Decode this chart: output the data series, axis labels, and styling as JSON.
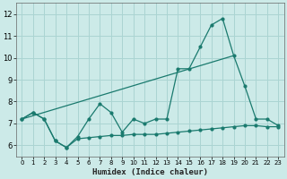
{
  "xlabel": "Humidex (Indice chaleur)",
  "background_color": "#cceae8",
  "grid_color": "#aad4d2",
  "line_color": "#1a7a6e",
  "xlim": [
    -0.5,
    23.5
  ],
  "ylim": [
    5.5,
    12.5
  ],
  "yticks": [
    6,
    7,
    8,
    9,
    10,
    11,
    12
  ],
  "xticks": [
    0,
    1,
    2,
    3,
    4,
    5,
    6,
    7,
    8,
    9,
    10,
    11,
    12,
    13,
    14,
    15,
    16,
    17,
    18,
    19,
    20,
    21,
    22,
    23
  ],
  "series1_x": [
    0,
    1,
    2,
    3,
    4,
    5,
    6,
    7,
    8,
    9,
    10,
    11,
    12,
    13,
    14,
    15,
    16,
    17,
    18,
    19,
    20,
    21,
    22,
    23
  ],
  "series1_y": [
    7.2,
    7.5,
    7.2,
    6.2,
    5.9,
    6.4,
    7.2,
    7.9,
    7.5,
    6.6,
    7.2,
    7.0,
    7.2,
    7.2,
    9.5,
    9.5,
    10.5,
    11.5,
    11.8,
    10.1,
    8.7,
    7.2,
    7.2,
    6.9
  ],
  "series2_x": [
    0,
    1,
    2,
    3,
    4,
    5,
    6,
    7,
    8,
    9,
    10,
    11,
    12,
    13,
    14,
    15,
    16,
    17,
    18,
    19,
    20,
    21,
    22,
    23
  ],
  "series2_y": [
    7.2,
    7.5,
    7.2,
    6.2,
    5.9,
    6.3,
    6.35,
    6.4,
    6.45,
    6.45,
    6.5,
    6.5,
    6.5,
    6.55,
    6.6,
    6.65,
    6.7,
    6.75,
    6.8,
    6.85,
    6.9,
    6.9,
    6.85,
    6.85
  ],
  "series3_x": [
    0,
    19
  ],
  "series3_y": [
    7.2,
    10.1
  ]
}
